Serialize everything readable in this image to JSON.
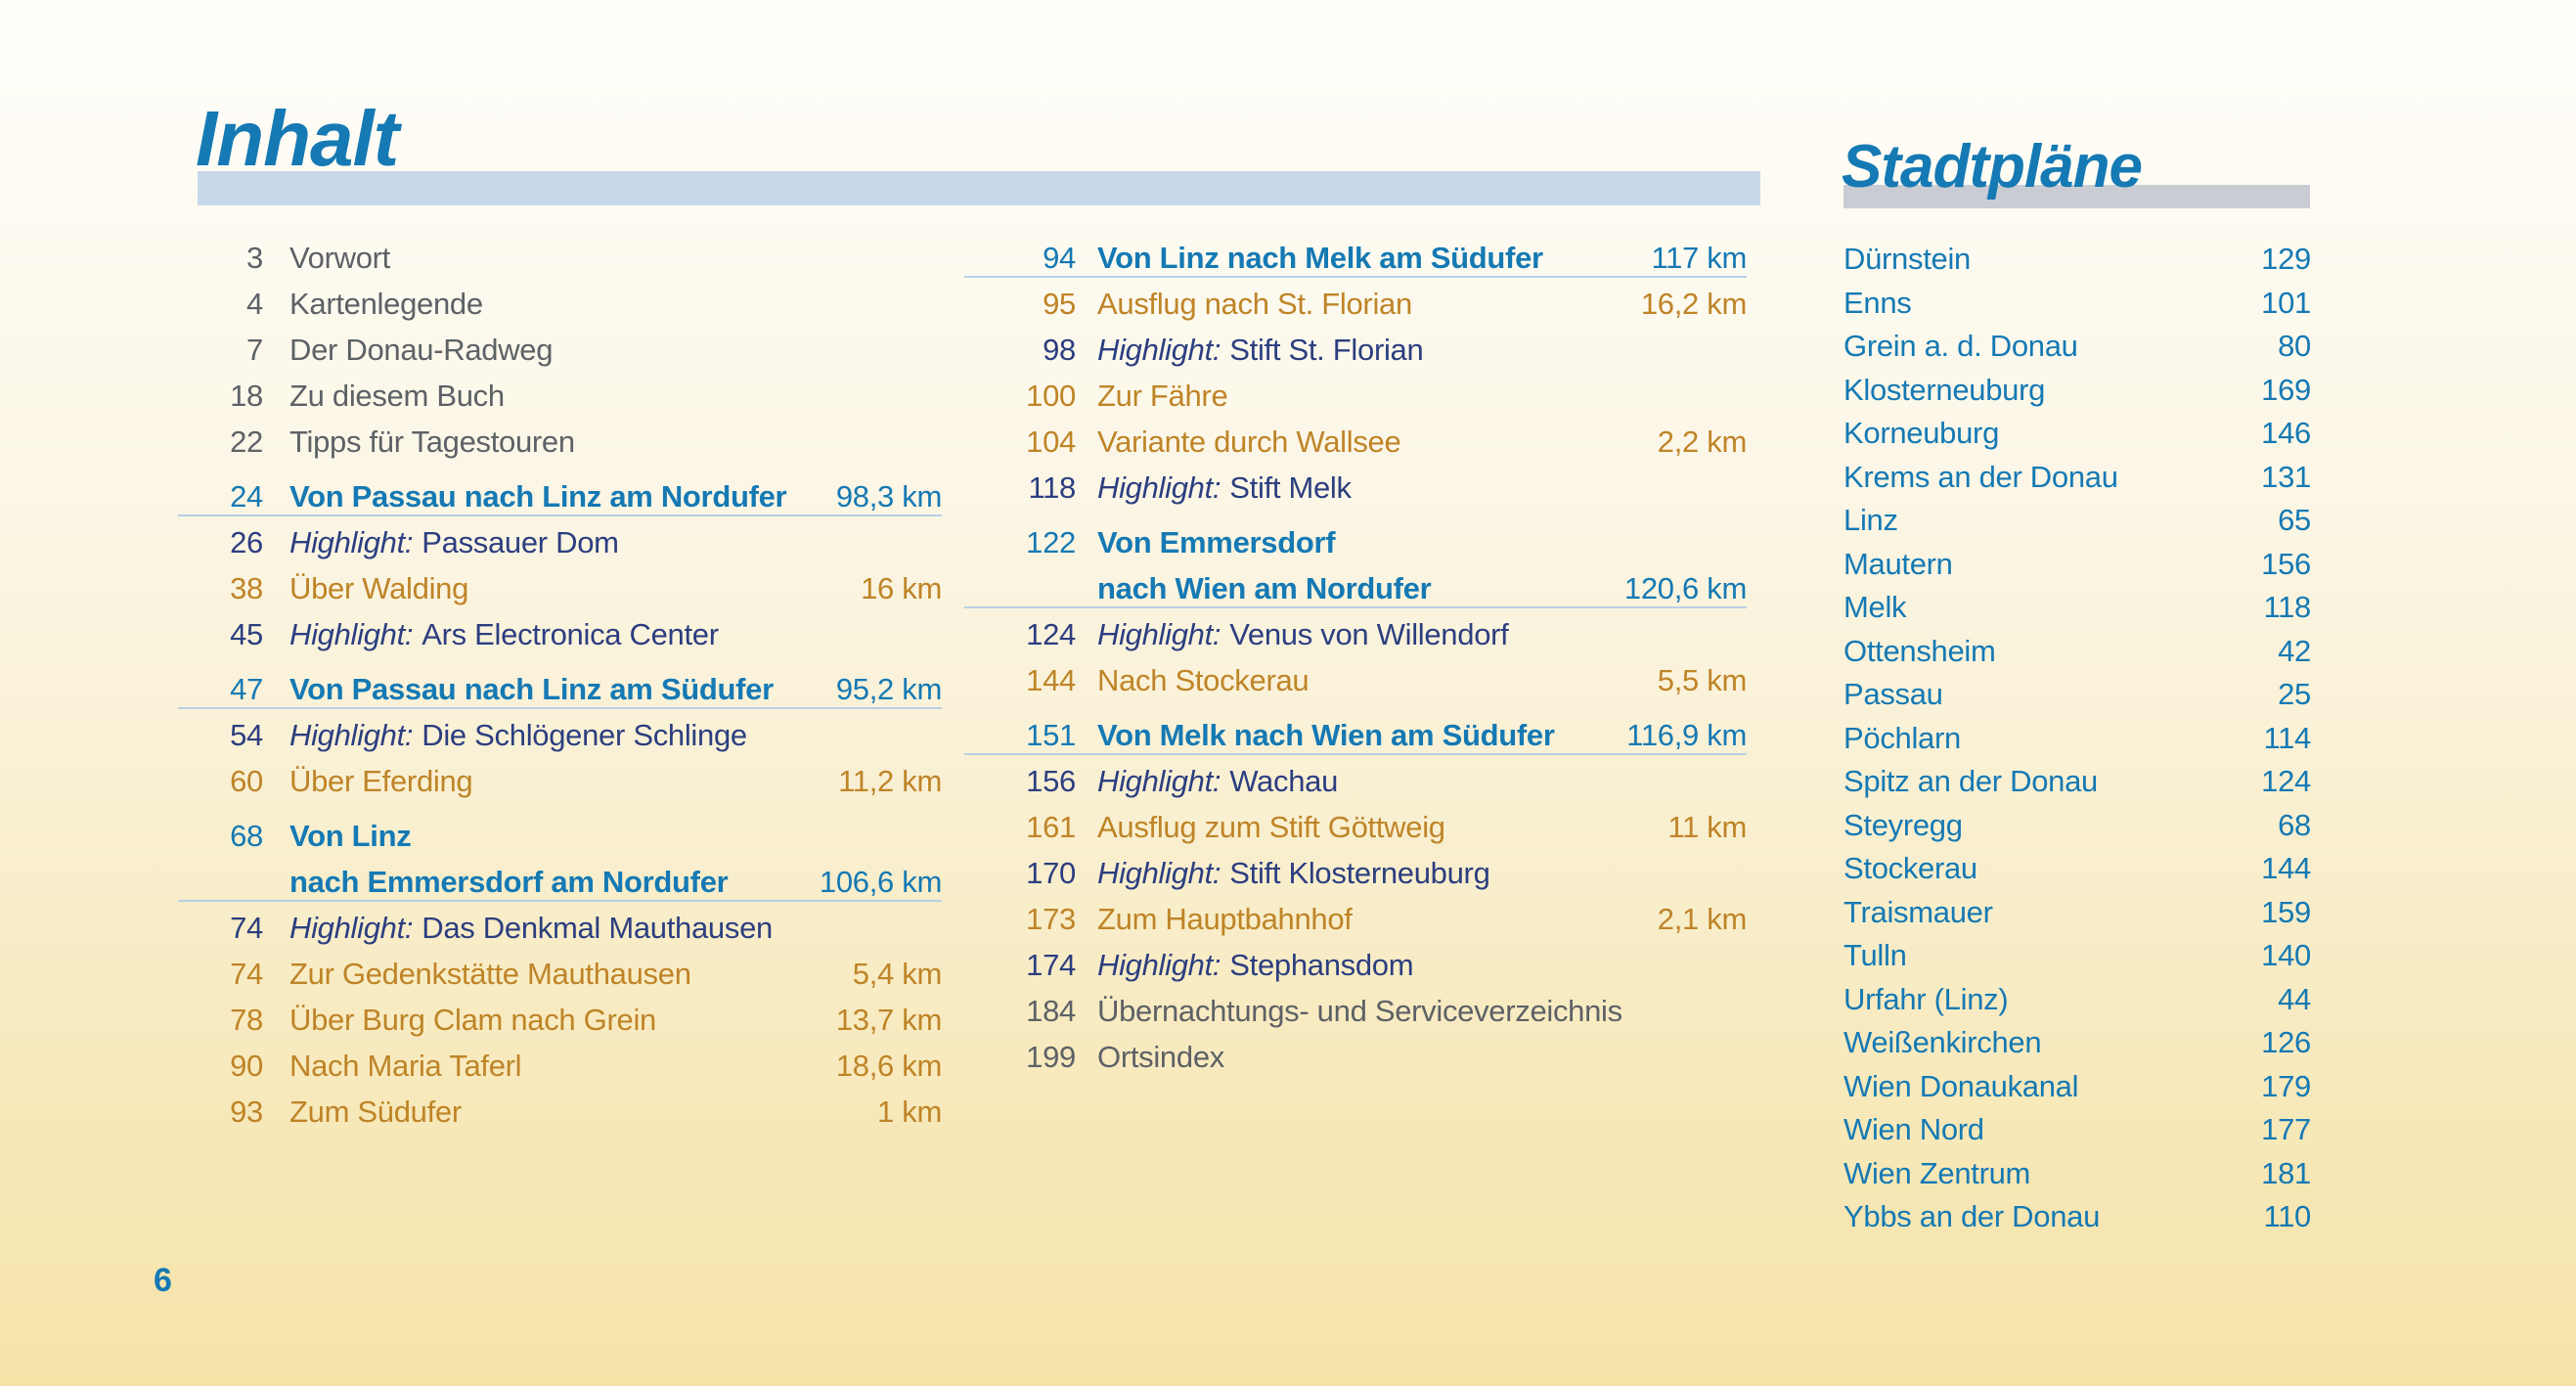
{
  "header": {
    "title": "Inhalt"
  },
  "city_maps_header": {
    "title": "Stadtpläne"
  },
  "footer": {
    "page_number": "6"
  },
  "colors": {
    "accent_blue": "#1579b4",
    "navy": "#2c3e80",
    "orange": "#bf8427",
    "gray": "#5d6166",
    "rule_light_blue": "#b9cfe4",
    "inhalt_band": "#c9d8ea",
    "stadtplaene_band": "#c9ccd2",
    "background_top": "#fffefa",
    "background_bottom": "#f5e3a8"
  },
  "toc": {
    "left_column": [
      {
        "page": "3",
        "text": "Vorwort",
        "style": "plain"
      },
      {
        "page": "4",
        "text": "Kartenlegende",
        "style": "plain"
      },
      {
        "page": "7",
        "text": "Der Donau-Radweg",
        "style": "plain"
      },
      {
        "page": "18",
        "text": "Zu diesem Buch",
        "style": "plain"
      },
      {
        "page": "22",
        "text": "Tipps für Tagestouren",
        "style": "plain"
      },
      {
        "page": "24",
        "text": "Von Passau nach Linz am Nordufer",
        "km": "98,3 km",
        "style": "route",
        "gap_before": true,
        "underline": true
      },
      {
        "page": "26",
        "prefix": "Highlight:",
        "text": "Passauer Dom",
        "style": "highlight"
      },
      {
        "page": "38",
        "text": "Über Walding",
        "km": "16 km",
        "style": "variant"
      },
      {
        "page": "45",
        "prefix": "Highlight:",
        "text": "Ars Electronica Center",
        "style": "highlight"
      },
      {
        "page": "47",
        "text": "Von Passau nach Linz am Südufer",
        "km": "95,2 km",
        "style": "route",
        "gap_before": true,
        "underline": true
      },
      {
        "page": "54",
        "prefix": "Highlight:",
        "text": "Die Schlögener Schlinge",
        "style": "highlight"
      },
      {
        "page": "60",
        "text": "Über Eferding",
        "km": "11,2 km",
        "style": "variant"
      },
      {
        "page": "68",
        "text": "Von Linz",
        "style": "route",
        "gap_before": true
      },
      {
        "page": "",
        "text": "nach Emmersdorf am Nordufer",
        "km": "106,6 km",
        "style": "route",
        "underline": true
      },
      {
        "page": "74",
        "prefix": "Highlight:",
        "text": "Das Denkmal Mauthausen",
        "style": "highlight"
      },
      {
        "page": "74",
        "text": "Zur Gedenkstätte Mauthausen",
        "km": "5,4 km",
        "style": "variant"
      },
      {
        "page": "78",
        "text": "Über Burg Clam nach Grein",
        "km": "13,7 km",
        "style": "variant"
      },
      {
        "page": "90",
        "text": "Nach Maria Taferl",
        "km": "18,6 km",
        "style": "variant"
      },
      {
        "page": "93",
        "text": "Zum Südufer",
        "km": "1 km",
        "style": "variant"
      }
    ],
    "middle_column": [
      {
        "page": "94",
        "text": "Von Linz nach Melk am Südufer",
        "km": "117 km",
        "style": "route",
        "underline": true
      },
      {
        "page": "95",
        "text": "Ausflug nach St. Florian",
        "km": "16,2 km",
        "style": "variant"
      },
      {
        "page": "98",
        "prefix": "Highlight:",
        "text": "Stift St. Florian",
        "style": "highlight"
      },
      {
        "page": "100",
        "text": "Zur Fähre",
        "style": "variant"
      },
      {
        "page": "104",
        "text": "Variante durch Wallsee",
        "km": "2,2 km",
        "style": "variant"
      },
      {
        "page": "118",
        "prefix": "Highlight:",
        "text": "Stift Melk",
        "style": "highlight"
      },
      {
        "page": "122",
        "text": "Von Emmersdorf",
        "style": "route",
        "gap_before": true
      },
      {
        "page": "",
        "text": "nach Wien am Nordufer",
        "km": "120,6 km",
        "style": "route",
        "underline": true
      },
      {
        "page": "124",
        "prefix": "Highlight:",
        "text": "Venus von Willendorf",
        "style": "highlight"
      },
      {
        "page": "144",
        "text": "Nach Stockerau",
        "km": "5,5 km",
        "style": "variant"
      },
      {
        "page": "151",
        "text": "Von Melk nach Wien am Südufer",
        "km": "116,9 km",
        "style": "route",
        "gap_before": true,
        "underline": true
      },
      {
        "page": "156",
        "prefix": "Highlight:",
        "text": "Wachau",
        "style": "highlight"
      },
      {
        "page": "161",
        "text": "Ausflug zum Stift Göttweig",
        "km": "11 km",
        "style": "variant"
      },
      {
        "page": "170",
        "prefix": "Highlight:",
        "text": "Stift Klosterneuburg",
        "style": "highlight"
      },
      {
        "page": "173",
        "text": "Zum Hauptbahnhof",
        "km": "2,1 km",
        "style": "variant"
      },
      {
        "page": "174",
        "prefix": "Highlight:",
        "text": "Stephansdom",
        "style": "highlight"
      },
      {
        "page": "184",
        "text": "Übernachtungs- und Serviceverzeichnis",
        "style": "plain"
      },
      {
        "page": "199",
        "text": "Ortsindex",
        "style": "plain"
      }
    ]
  },
  "city_maps": [
    {
      "name": "Dürnstein",
      "page": "129"
    },
    {
      "name": "Enns",
      "page": "101"
    },
    {
      "name": "Grein a. d. Donau",
      "page": "80"
    },
    {
      "name": "Klosterneuburg",
      "page": "169"
    },
    {
      "name": "Korneuburg",
      "page": "146"
    },
    {
      "name": "Krems an der Donau",
      "page": "131"
    },
    {
      "name": "Linz",
      "page": "65"
    },
    {
      "name": "Mautern",
      "page": "156"
    },
    {
      "name": "Melk",
      "page": "118"
    },
    {
      "name": "Ottensheim",
      "page": "42"
    },
    {
      "name": "Passau",
      "page": "25"
    },
    {
      "name": "Pöchlarn",
      "page": "114"
    },
    {
      "name": "Spitz an der Donau",
      "page": "124"
    },
    {
      "name": "Steyregg",
      "page": "68"
    },
    {
      "name": "Stockerau",
      "page": "144"
    },
    {
      "name": "Traismauer",
      "page": "159"
    },
    {
      "name": "Tulln",
      "page": "140"
    },
    {
      "name": "Urfahr (Linz)",
      "page": "44"
    },
    {
      "name": "Weißenkirchen",
      "page": "126"
    },
    {
      "name": "Wien Donaukanal",
      "page": "179"
    },
    {
      "name": "Wien Nord",
      "page": "177"
    },
    {
      "name": "Wien Zentrum",
      "page": "181"
    },
    {
      "name": "Ybbs an der Donau",
      "page": "110"
    }
  ]
}
